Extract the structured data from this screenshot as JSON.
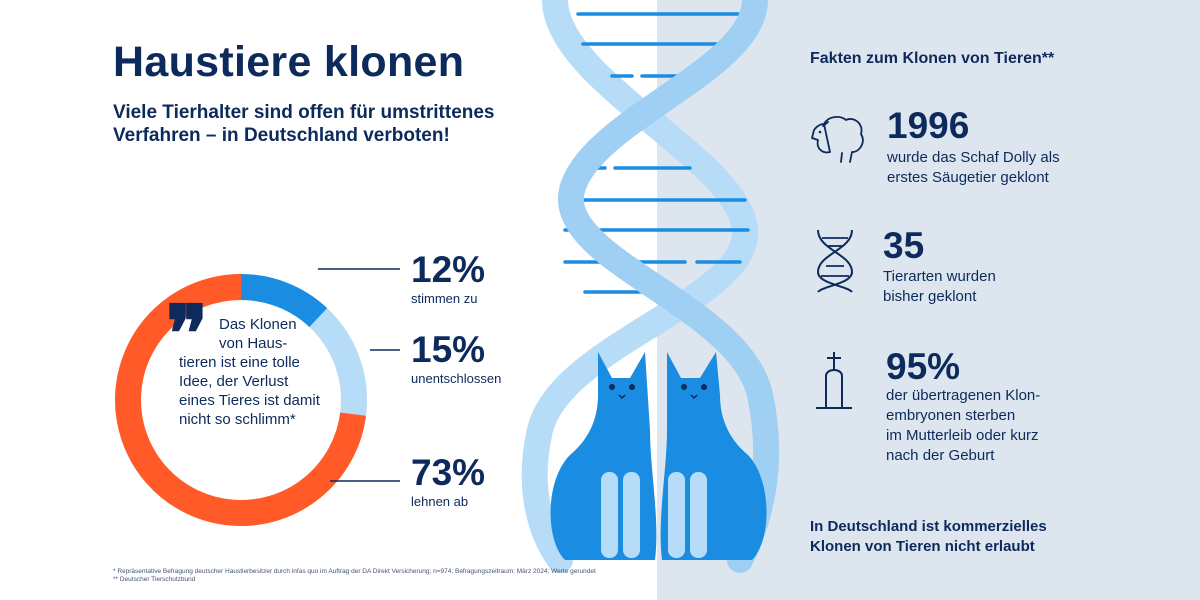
{
  "title": "Haustiere klonen",
  "subtitle": {
    "line1": "Viele Tierhalter sind offen für umstrittenes",
    "line2": "Verfahren – in Deutschland verboten!"
  },
  "quote": {
    "mark": "❞",
    "lines": [
      "Das Klonen",
      "von Haus-",
      "tieren ist eine tolle",
      "Idee, der Verlust",
      "eines Tieres ist damit",
      "nicht so schlimm*"
    ]
  },
  "chart_data": {
    "type": "pie",
    "title": "",
    "categories": [
      "stimmen zu",
      "unentschlossen",
      "lehnen ab"
    ],
    "values": [
      12,
      15,
      73
    ],
    "value_labels": [
      "12%",
      "15%",
      "73%"
    ],
    "unit": "%",
    "colors": [
      "#1a8de3",
      "#b7dcf7",
      "#ff5a27"
    ],
    "legend_placement": "right"
  },
  "facts": {
    "title": "Fakten zum Klonen von Tieren**",
    "items": [
      {
        "icon": "sheep-icon",
        "number": "1996",
        "lines": [
          "wurde das Schaf Dolly als",
          "erstes Säugetier geklont"
        ]
      },
      {
        "icon": "dna-icon",
        "number": "35",
        "lines": [
          "Tierarten wurden",
          "bisher geklont"
        ]
      },
      {
        "icon": "gravestone-icon",
        "number": "95%",
        "lines": [
          "der übertragenen  Klon-",
          "embryonen sterben",
          "im Mutterleib oder kurz",
          "nach der Geburt"
        ]
      }
    ],
    "note": [
      "In Deutschland ist kommerzielles",
      "Klonen von Tieren nicht erlaubt"
    ]
  },
  "footnotes": [
    "*  Repräsentative Befragung deutscher Haustierbesitzer durch infas quo im Auftrag der DA Direkt Versicherung; n=974; Befragungszeitraum: März 2024; Werte gerundet",
    "** Deutscher Tierschutzbund"
  ],
  "colors": {
    "navy": "#0d2a5c",
    "blue": "#1a8de3",
    "light_blue": "#b7dcf7",
    "orange": "#ff5a27",
    "panel": "#dde5ee"
  }
}
